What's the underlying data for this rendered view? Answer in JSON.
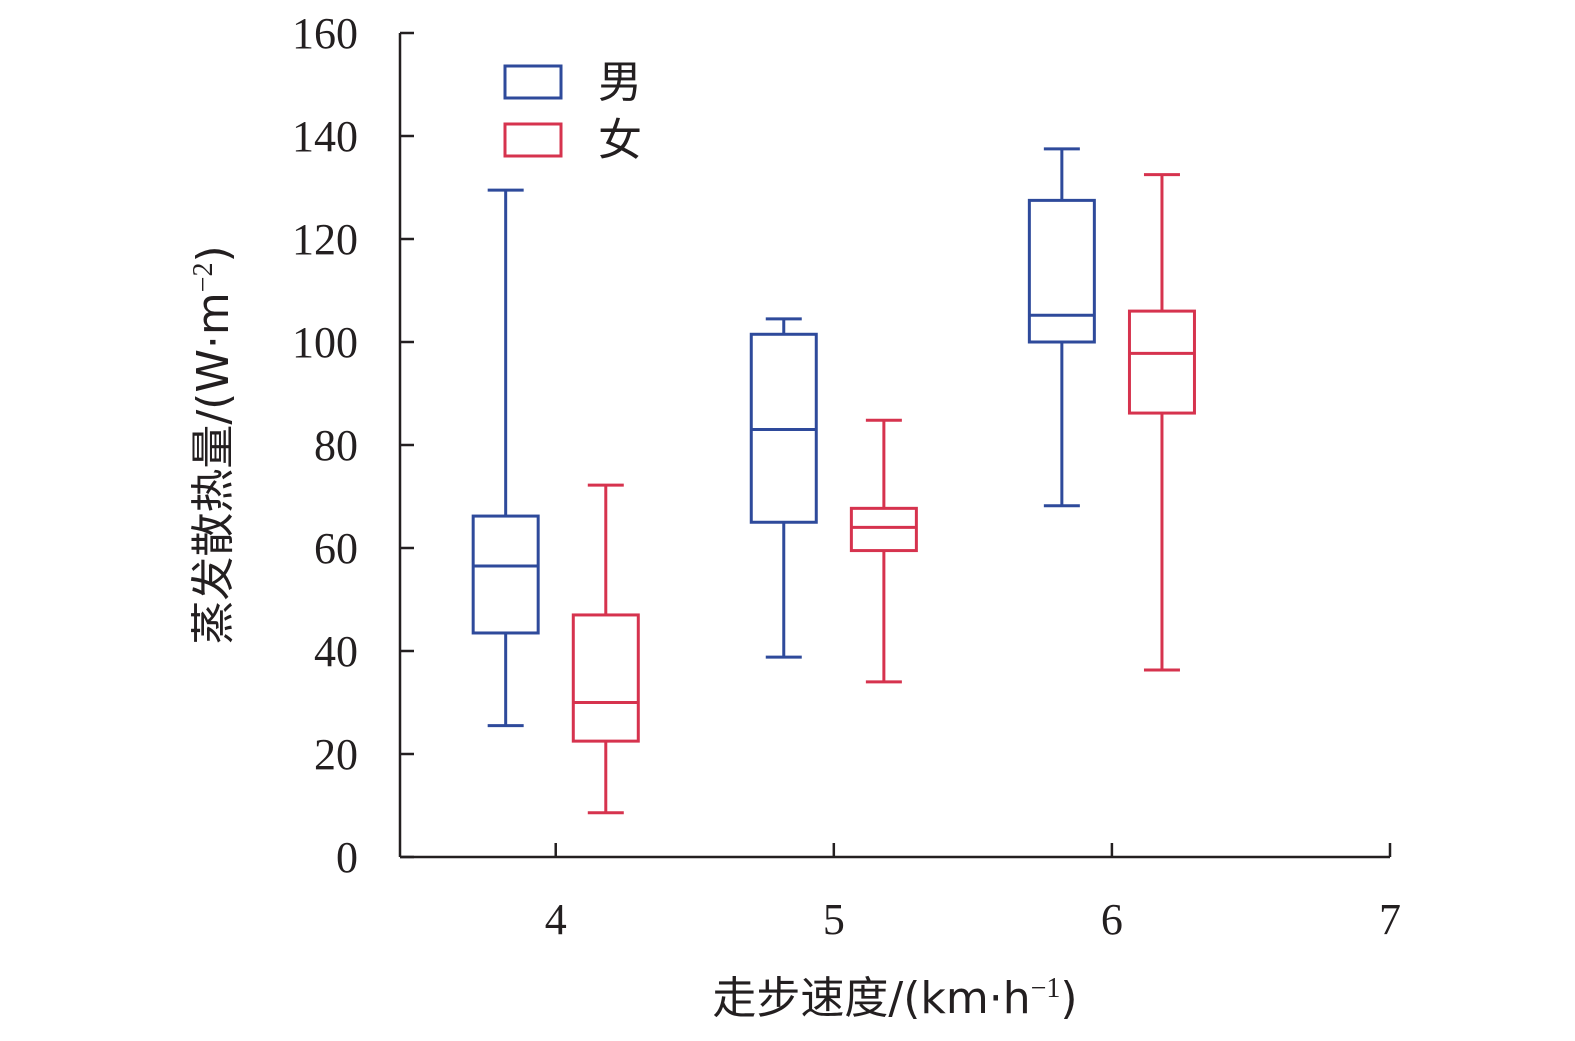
{
  "chart_data": {
    "type": "box",
    "title": "",
    "xlabel": "走步速度/(km·h",
    "xlabel_sup": "−1",
    "xlabel_tail": ")",
    "ylabel": "蒸发散热量/(W·m",
    "ylabel_sup": "−2",
    "ylabel_tail": ")",
    "xlim": [
      3.44,
      7
    ],
    "ylim": [
      0,
      160
    ],
    "xticks": [
      4,
      5,
      6,
      7
    ],
    "yticks": [
      0,
      20,
      40,
      60,
      80,
      100,
      120,
      140,
      160
    ],
    "grid": false,
    "legend_position": "top-left",
    "series": [
      {
        "name": "男",
        "color": "#2e4a9b",
        "boxes": [
          {
            "x": 3.82,
            "min": 25.5,
            "q1": 43.5,
            "median": 56.5,
            "q3": 66.2,
            "max": 129.5
          },
          {
            "x": 4.82,
            "min": 38.8,
            "q1": 65.0,
            "median": 83.0,
            "q3": 101.5,
            "max": 104.5
          },
          {
            "x": 5.82,
            "min": 68.2,
            "q1": 100.0,
            "median": 105.2,
            "q3": 127.5,
            "max": 137.5
          }
        ]
      },
      {
        "name": "女",
        "color": "#d6334e",
        "boxes": [
          {
            "x": 4.18,
            "min": 8.6,
            "q1": 22.5,
            "median": 30.0,
            "q3": 47.0,
            "max": 72.2
          },
          {
            "x": 5.18,
            "min": 34.0,
            "q1": 59.5,
            "median": 64.0,
            "q3": 67.7,
            "max": 84.8
          },
          {
            "x": 6.18,
            "min": 36.3,
            "q1": 86.2,
            "median": 97.8,
            "q3": 106.0,
            "max": 132.5
          }
        ]
      }
    ]
  }
}
